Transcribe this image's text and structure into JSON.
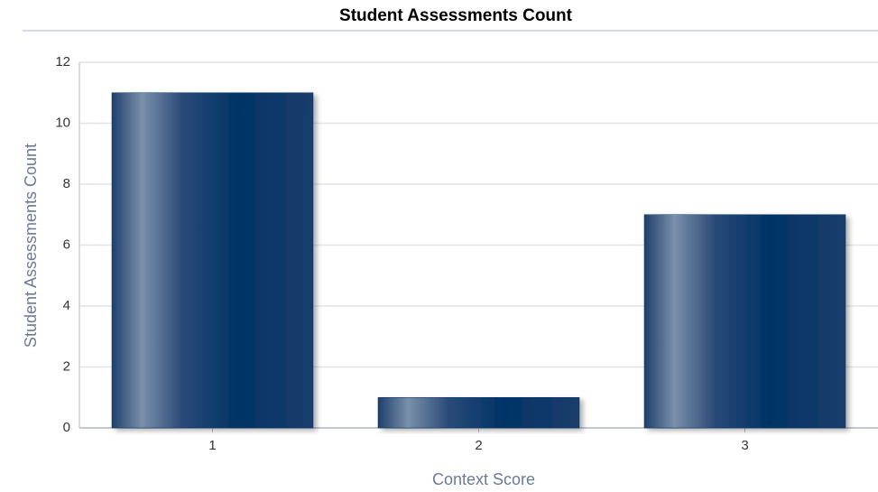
{
  "chart_data": {
    "type": "bar",
    "title": "Student Assessments Count",
    "x_label": "Context Score",
    "y_label": "Student Assessments Count",
    "categories": [
      "1",
      "2",
      "3"
    ],
    "values": [
      11,
      1,
      7
    ],
    "color": "#003366",
    "ylim": [
      0,
      12
    ],
    "yticks": [
      0,
      2,
      4,
      6,
      8,
      10,
      12
    ],
    "grid": true
  }
}
